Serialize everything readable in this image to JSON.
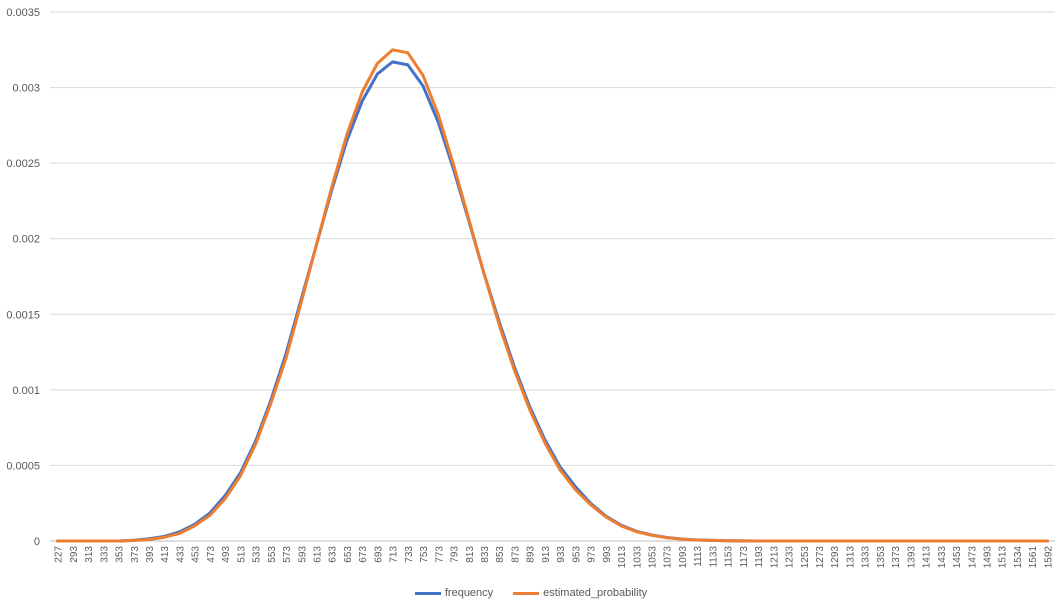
{
  "chart_data": {
    "type": "line",
    "title": "",
    "xlabel": "",
    "ylabel": "",
    "ylim": [
      0,
      0.0035
    ],
    "y_ticks": [
      "0",
      "0.0005",
      "0.001",
      "0.0015",
      "0.002",
      "0.0025",
      "0.003",
      "0.0035"
    ],
    "x_tick_labels": [
      "227",
      "293",
      "313",
      "333",
      "353",
      "373",
      "393",
      "413",
      "433",
      "453",
      "473",
      "493",
      "513",
      "533",
      "553",
      "573",
      "593",
      "613",
      "633",
      "653",
      "673",
      "693",
      "713",
      "733",
      "753",
      "773",
      "793",
      "813",
      "833",
      "853",
      "873",
      "893",
      "913",
      "933",
      "953",
      "973",
      "993",
      "1013",
      "1033",
      "1053",
      "1073",
      "1093",
      "1113",
      "1133",
      "1153",
      "1173",
      "1193",
      "1213",
      "1233",
      "1253",
      "1273",
      "1293",
      "1313",
      "1333",
      "1353",
      "1373",
      "1393",
      "1413",
      "1433",
      "1453",
      "1473",
      "1493",
      "1513",
      "1534",
      "1561",
      "1592"
    ],
    "grid": "horizontal",
    "legend_position": "bottom",
    "series": [
      {
        "name": "frequency",
        "color": "#4472C4",
        "values": [
          0,
          0,
          0,
          0,
          0,
          5e-06,
          1.5e-05,
          3e-05,
          6e-05,
          0.00011,
          0.000185,
          0.0003,
          0.00045,
          0.00066,
          0.00093,
          0.00124,
          0.0016,
          0.00196,
          0.00232,
          0.00265,
          0.00291,
          0.00309,
          0.00317,
          0.00315,
          0.00301,
          0.00277,
          0.00246,
          0.00212,
          0.00177,
          0.00145,
          0.00115,
          0.00089,
          0.00067,
          0.00049,
          0.00036,
          0.00025,
          0.000165,
          0.000105,
          6.5e-05,
          4e-05,
          2.3e-05,
          1.3e-05,
          7e-06,
          4e-06,
          2e-06,
          1e-06,
          0,
          0,
          0,
          0,
          0,
          0,
          0,
          0,
          0,
          0,
          0,
          0,
          0,
          0,
          0,
          0,
          0,
          0,
          0,
          0
        ]
      },
      {
        "name": "estimated_probability",
        "color": "#ED7D31",
        "values": [
          0,
          0,
          0,
          0,
          0,
          3e-06,
          1e-05,
          2.5e-05,
          5e-05,
          0.0001,
          0.00017,
          0.00028,
          0.00043,
          0.00064,
          0.00091,
          0.00121,
          0.00158,
          0.00196,
          0.00234,
          0.00269,
          0.00297,
          0.00316,
          0.00325,
          0.00323,
          0.00308,
          0.00282,
          0.00249,
          0.00213,
          0.00177,
          0.00143,
          0.00113,
          0.00087,
          0.00065,
          0.00047,
          0.00034,
          0.00024,
          0.00016,
          0.0001,
          6.2e-05,
          3.8e-05,
          2.2e-05,
          1.2e-05,
          7e-06,
          4e-06,
          2e-06,
          1e-06,
          0,
          0,
          0,
          0,
          0,
          0,
          0,
          0,
          0,
          0,
          0,
          0,
          0,
          0,
          0,
          0,
          0,
          0,
          0,
          0
        ]
      }
    ]
  }
}
